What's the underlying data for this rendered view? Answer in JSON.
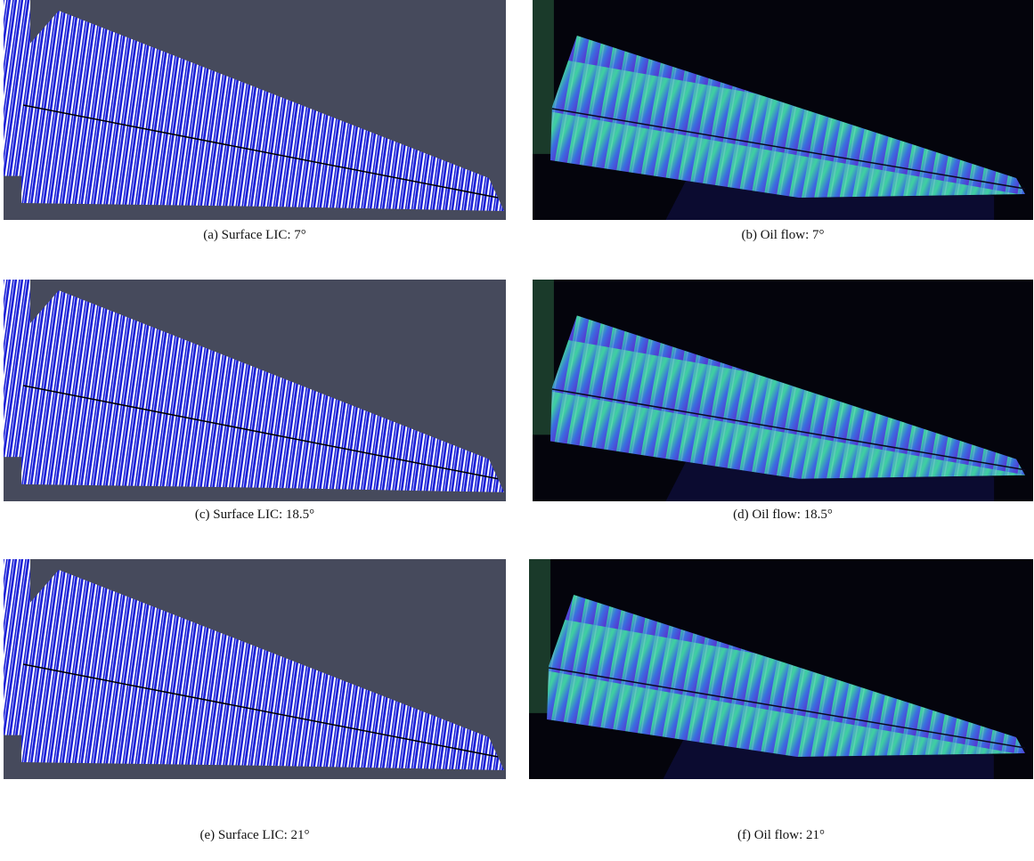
{
  "figure": {
    "panels": [
      {
        "caption": "(a) Surface LIC: 7°"
      },
      {
        "caption": "(b) Oil flow: 7°"
      },
      {
        "caption": "(c) Surface LIC: 18.5°"
      },
      {
        "caption": "(d) Oil flow: 18.5°"
      },
      {
        "caption": "(e) Surface LIC: 21°"
      },
      {
        "caption": "(f) Oil flow: 21°"
      }
    ]
  }
}
